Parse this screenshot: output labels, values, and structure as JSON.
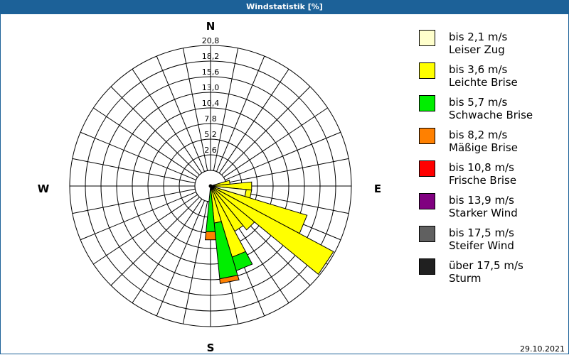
{
  "title": "Windstatistik [%]",
  "date": "29.10.2021",
  "compass": {
    "N": "N",
    "E": "E",
    "S": "S",
    "W": "W"
  },
  "legend": [
    {
      "range": "bis 2,1 m/s",
      "name": "Leiser Zug",
      "color": "#ffffcc"
    },
    {
      "range": "bis 3,6 m/s",
      "name": "Leichte Brise",
      "color": "#ffff00"
    },
    {
      "range": "bis 5,7 m/s",
      "name": "Schwache Brise",
      "color": "#00ee00"
    },
    {
      "range": "bis 8,2 m/s",
      "name": "Mäßige Brise",
      "color": "#ff8000"
    },
    {
      "range": "bis 10,8 m/s",
      "name": "Frische Brise",
      "color": "#ff0000"
    },
    {
      "range": "bis 13,9 m/s",
      "name": "Starker Wind",
      "color": "#800080"
    },
    {
      "range": "bis 17,5 m/s",
      "name": "Steifer Wind",
      "color": "#606060"
    },
    {
      "range": "über 17,5 m/s",
      "name": "Sturm",
      "color": "#202020"
    }
  ],
  "chart_data": {
    "type": "polar-bar (wind rose)",
    "title": "Windstatistik [%]",
    "unit": "%",
    "radial_ticks": [
      "2,6",
      "5,2",
      "7,8",
      "10,4",
      "13,0",
      "15,6",
      "18,2",
      "20,8"
    ],
    "radial_max": 20.8,
    "sectors": 32,
    "sector_width_deg": 11.25,
    "grid": true,
    "legend_position": "right",
    "series_names": [
      "bis 2,1 m/s",
      "bis 3,6 m/s",
      "bis 5,7 m/s",
      "bis 8,2 m/s",
      "bis 10,8 m/s",
      "bis 13,9 m/s",
      "bis 17,5 m/s",
      "über 17,5 m/s"
    ],
    "bars": [
      {
        "bearing": 78.75,
        "cumulative": [
          0.0,
          2.9,
          2.9,
          2.9
        ]
      },
      {
        "bearing": 90.0,
        "cumulative": [
          0.0,
          6.1,
          6.1,
          6.1
        ]
      },
      {
        "bearing": 101.25,
        "cumulative": [
          5.3,
          6.1,
          6.1,
          6.1
        ]
      },
      {
        "bearing": 112.5,
        "cumulative": [
          0.0,
          14.9,
          14.9,
          14.9
        ]
      },
      {
        "bearing": 123.75,
        "cumulative": [
          0.0,
          20.6,
          20.6,
          20.6
        ]
      },
      {
        "bearing": 135.0,
        "cumulative": [
          0.0,
          8.4,
          8.4,
          8.4
        ]
      },
      {
        "bearing": 146.25,
        "cumulative": [
          0.0,
          7.6,
          7.6,
          7.6
        ]
      },
      {
        "bearing": 157.5,
        "cumulative": [
          0.0,
          11.0,
          13.1,
          13.1
        ]
      },
      {
        "bearing": 168.75,
        "cumulative": [
          0.0,
          5.5,
          13.8,
          14.5
        ]
      },
      {
        "bearing": 180.0,
        "cumulative": [
          0.0,
          0.0,
          6.8,
          8.0
        ]
      }
    ]
  }
}
